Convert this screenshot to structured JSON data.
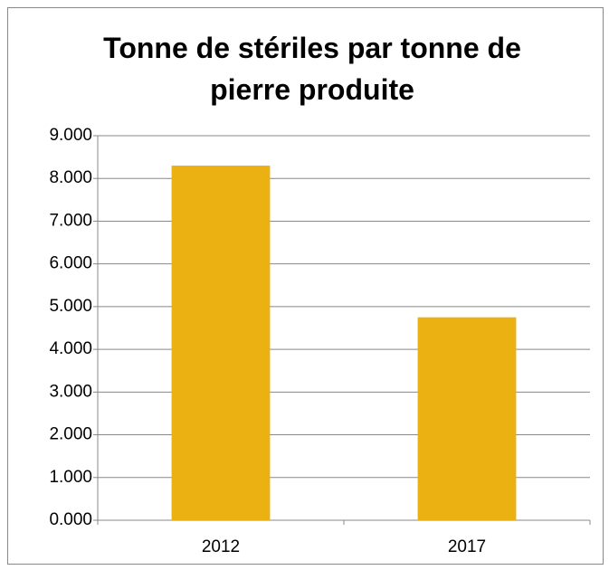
{
  "chart_data": {
    "type": "bar",
    "title": "Tonne de stériles par tonne de pierre produite",
    "categories": [
      "2012",
      "2017"
    ],
    "values": [
      8.3,
      4.75
    ],
    "color": "#ebb012",
    "ylim": [
      0,
      9
    ],
    "yticks": [
      {
        "value": 0,
        "label": "0.000"
      },
      {
        "value": 1,
        "label": "1.000"
      },
      {
        "value": 2,
        "label": "2.000"
      },
      {
        "value": 3,
        "label": "3.000"
      },
      {
        "value": 4,
        "label": "4.000"
      },
      {
        "value": 5,
        "label": "5.000"
      },
      {
        "value": 6,
        "label": "6.000"
      },
      {
        "value": 7,
        "label": "7.000"
      },
      {
        "value": 8,
        "label": "8.000"
      },
      {
        "value": 9,
        "label": "9.000"
      }
    ],
    "grid": true
  }
}
